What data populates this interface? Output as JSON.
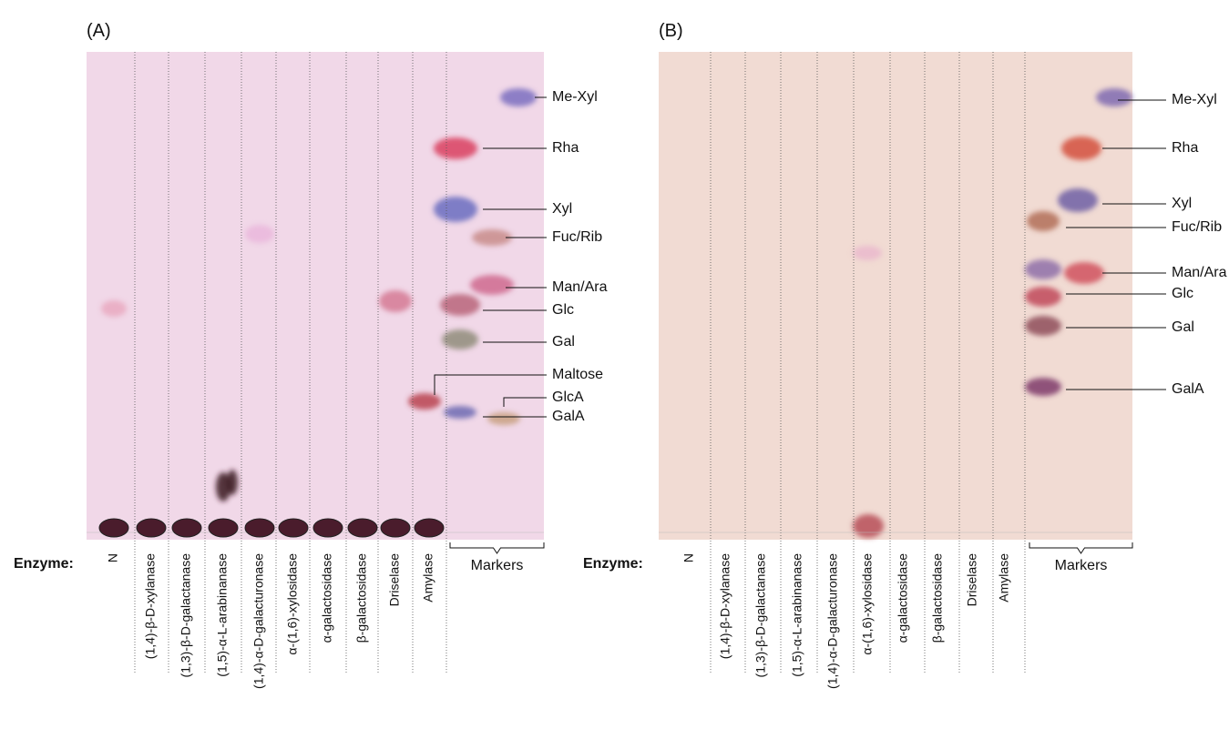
{
  "panels": [
    {
      "label": "(A)",
      "enzyme_label": "Enzyme:",
      "markers_label": "Markers",
      "lanes": [
        "N",
        "(1,4)-β-D-xylanase",
        "(1,3)-β-D-galactanase",
        "(1,5)-α-L-arabinanase",
        "(1,4)-α-D-galacturonase",
        "α-(1,6)-xylosidase",
        "α-galactosidase",
        "β-galactosidase",
        "Driselase",
        "Amylase"
      ],
      "spot_labels": [
        "Me-Xyl",
        "Rha",
        "Xyl",
        "Fuc/Rib",
        "Man/Ara",
        "Glc",
        "Gal",
        "Maltose",
        "GlcA",
        "GalA"
      ]
    },
    {
      "label": "(B)",
      "enzyme_label": "Enzyme:",
      "markers_label": "Markers",
      "lanes": [
        "N",
        "(1,4)-β-D-xylanase",
        "(1,3)-β-D-galactanase",
        "(1,5)-α-L-arabinanase",
        "(1,4)-α-D-galacturonase",
        "α-(1,6)-xylosidase",
        "α-galactosidase",
        "β-galactosidase",
        "Driselase",
        "Amylase"
      ],
      "spot_labels": [
        "Me-Xyl",
        "Rha",
        "Xyl",
        "Fuc/Rib",
        "Man/Ara",
        "Glc",
        "Gal",
        "GalA"
      ]
    }
  ]
}
